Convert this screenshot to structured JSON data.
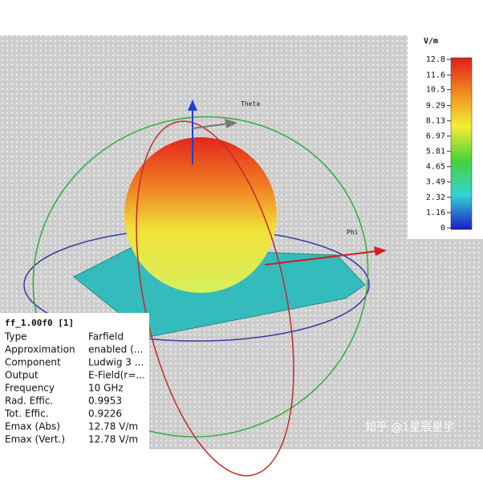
{
  "colorbar": {
    "unit": "V/m",
    "ticks": [
      12.8,
      11.6,
      10.5,
      9.29,
      8.13,
      6.97,
      5.81,
      4.65,
      3.49,
      2.32,
      1.16,
      0
    ]
  },
  "axes": {
    "theta": "Theta",
    "phi": "Phi"
  },
  "info_panel": {
    "title": "ff_1.00f0 [1]",
    "rows": [
      [
        "Type",
        "Farfield"
      ],
      [
        "Approximation",
        "enabled (..."
      ],
      [
        "Component",
        "Ludwig 3 ..."
      ],
      [
        "Output",
        "E-Field(r=..."
      ],
      [
        "Frequency",
        "10 GHz"
      ],
      [
        "Rad. Effic.",
        "0.9953"
      ],
      [
        "Tot. Effic.",
        "0.9226"
      ],
      [
        "Emax (Abs)",
        "12.78 V/m"
      ],
      [
        "Emax (Vert.)",
        "12.78 V/m"
      ]
    ]
  },
  "watermark": "知乎 @1星辰星宇"
}
